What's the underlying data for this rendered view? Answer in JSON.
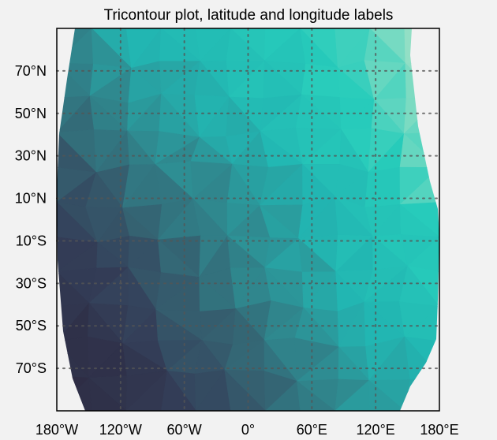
{
  "chart_data": {
    "type": "tricontour",
    "title": "Tricontour plot, latitude and longitude labels",
    "xlabel": "",
    "ylabel": "",
    "xlim": [
      -180,
      180
    ],
    "ylim": [
      -90,
      90
    ],
    "grid": true,
    "grid_style": "dotted",
    "xticks": [
      {
        "value": -180,
        "label": "180°W"
      },
      {
        "value": -120,
        "label": "120°W"
      },
      {
        "value": -60,
        "label": "60°W"
      },
      {
        "value": 0,
        "label": "0°"
      },
      {
        "value": 60,
        "label": "60°E"
      },
      {
        "value": 120,
        "label": "120°E"
      },
      {
        "value": 180,
        "label": "180°E"
      }
    ],
    "yticks": [
      {
        "value": 70,
        "label": "70°N"
      },
      {
        "value": 50,
        "label": "50°N"
      },
      {
        "value": 30,
        "label": "30°N"
      },
      {
        "value": 10,
        "label": "10°N"
      },
      {
        "value": -10,
        "label": "10°S"
      },
      {
        "value": -30,
        "label": "30°S"
      },
      {
        "value": -50,
        "label": "50°S"
      },
      {
        "value": -70,
        "label": "70°S"
      }
    ],
    "colormap": [
      "#2e2d45",
      "#34405a",
      "#356070",
      "#2f8a90",
      "#22b6b2",
      "#27ccbb",
      "#8edec4",
      "#b6e8cf"
    ],
    "field": [
      [
        0.4,
        0.55,
        0.6,
        0.65,
        0.7,
        0.8,
        0.88
      ],
      [
        0.35,
        0.45,
        0.55,
        0.62,
        0.68,
        0.78,
        0.85
      ],
      [
        0.25,
        0.35,
        0.45,
        0.52,
        0.62,
        0.7,
        0.82
      ],
      [
        0.15,
        0.25,
        0.35,
        0.45,
        0.55,
        0.65,
        0.75
      ],
      [
        0.05,
        0.15,
        0.3,
        0.4,
        0.5,
        0.6,
        0.7
      ],
      [
        0.02,
        0.05,
        0.22,
        0.32,
        0.42,
        0.55,
        0.62
      ],
      [
        0.0,
        0.02,
        0.15,
        0.25,
        0.38,
        0.48,
        0.55
      ]
    ]
  }
}
